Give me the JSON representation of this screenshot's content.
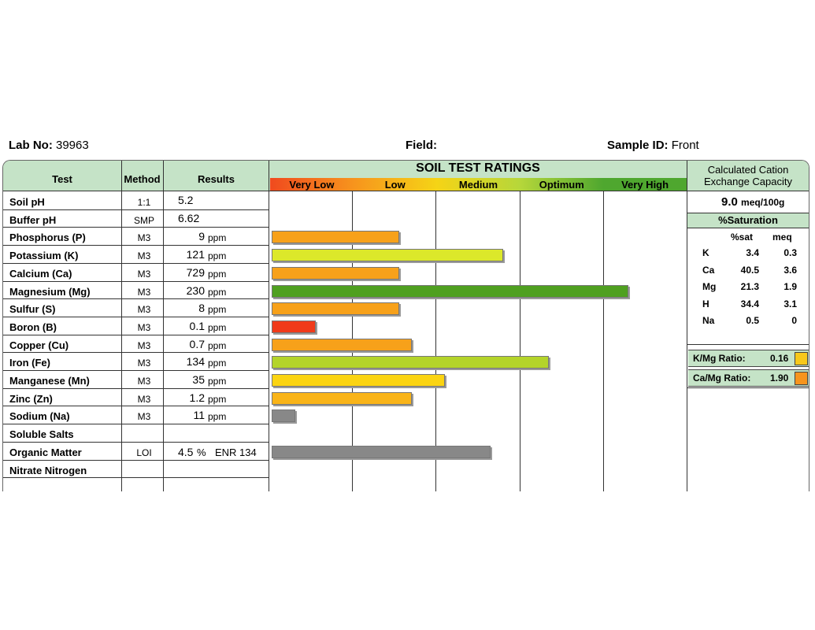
{
  "header": {
    "lab_no_label": "Lab No:",
    "lab_no_value": "39963",
    "field_label": "Field:",
    "field_value": "",
    "sample_id_label": "Sample ID:",
    "sample_id_value": "Front"
  },
  "table": {
    "col_test": "Test",
    "col_method": "Method",
    "col_results": "Results",
    "ratings_title": "SOIL TEST RATINGS",
    "scale": [
      {
        "label": "Very Low",
        "color": "#f04a1e"
      },
      {
        "label": "Low",
        "color": "#f7941d"
      },
      {
        "label": "Medium",
        "color": "#f5d416"
      },
      {
        "label": "Optimum",
        "color": "#b6d73a"
      },
      {
        "label": "Very High",
        "color": "#4fa72f"
      }
    ],
    "rows": [
      {
        "test": "Soil pH",
        "method": "1:1",
        "value": "5.2",
        "unit": "",
        "extra": "",
        "rating_pct": null,
        "color": ""
      },
      {
        "test": "Buffer pH",
        "method": "SMP",
        "value": "6.62",
        "unit": "",
        "extra": "",
        "rating_pct": null,
        "color": ""
      },
      {
        "test": "Phosphorus (P)",
        "method": "M3",
        "value": "9",
        "unit": "ppm",
        "extra": "",
        "rating_pct": 31,
        "color": "#f7a11a"
      },
      {
        "test": "Potassium (K)",
        "method": "M3",
        "value": "121",
        "unit": "ppm",
        "extra": "",
        "rating_pct": 56,
        "color": "#dce82a"
      },
      {
        "test": "Calcium (Ca)",
        "method": "M3",
        "value": "729",
        "unit": "ppm",
        "extra": "",
        "rating_pct": 31,
        "color": "#f7a11a"
      },
      {
        "test": "Magnesium (Mg)",
        "method": "M3",
        "value": "230",
        "unit": "ppm",
        "extra": "",
        "rating_pct": 86,
        "color": "#4fa020"
      },
      {
        "test": "Sulfur (S)",
        "method": "M3",
        "value": "8",
        "unit": "ppm",
        "extra": "",
        "rating_pct": 31,
        "color": "#f7a11a"
      },
      {
        "test": "Boron (B)",
        "method": "M3",
        "value": "0.1",
        "unit": "ppm",
        "extra": "",
        "rating_pct": 11,
        "color": "#f03a1a"
      },
      {
        "test": "Copper (Cu)",
        "method": "M3",
        "value": "0.7",
        "unit": "ppm",
        "extra": "",
        "rating_pct": 34,
        "color": "#f7a11a"
      },
      {
        "test": "Iron (Fe)",
        "method": "M3",
        "value": "134",
        "unit": "ppm",
        "extra": "",
        "rating_pct": 67,
        "color": "#b4d42a"
      },
      {
        "test": "Manganese (Mn)",
        "method": "M3",
        "value": "35",
        "unit": "ppm",
        "extra": "",
        "rating_pct": 42,
        "color": "#fbd412"
      },
      {
        "test": "Zinc (Zn)",
        "method": "M3",
        "value": "1.2",
        "unit": "ppm",
        "extra": "",
        "rating_pct": 34,
        "color": "#f9b418"
      },
      {
        "test": "Sodium (Na)",
        "method": "M3",
        "value": "11",
        "unit": "ppm",
        "extra": "",
        "rating_pct": 6,
        "color": "#888888"
      },
      {
        "test": "Soluble Salts",
        "method": "",
        "value": "",
        "unit": "",
        "extra": "",
        "rating_pct": null,
        "color": ""
      },
      {
        "test": "Organic Matter",
        "method": "LOI",
        "value": "4.5",
        "unit": "%",
        "extra": "ENR 134",
        "rating_pct": 53,
        "color": "#888888"
      },
      {
        "test": "Nitrate Nitrogen",
        "method": "",
        "value": "",
        "unit": "",
        "extra": "",
        "rating_pct": null,
        "color": ""
      }
    ]
  },
  "cec": {
    "title_line1": "Calculated Cation",
    "title_line2": "Exchange Capacity",
    "value": "9.0",
    "unit": "meq/100g",
    "sat_title": "%Saturation",
    "col_sat": "%sat",
    "col_meq": "meq",
    "rows": [
      {
        "ion": "K",
        "sat": "3.4",
        "meq": "0.3"
      },
      {
        "ion": "Ca",
        "sat": "40.5",
        "meq": "3.6"
      },
      {
        "ion": "Mg",
        "sat": "21.3",
        "meq": "1.9"
      },
      {
        "ion": "H",
        "sat": "34.4",
        "meq": "3.1"
      },
      {
        "ion": "Na",
        "sat": "0.5",
        "meq": "0"
      }
    ],
    "km_label": "K/Mg Ratio:",
    "km_value": "0.16",
    "km_color": "#f7c81a",
    "camg_label": "Ca/Mg Ratio:",
    "camg_value": "1.90",
    "camg_color": "#f7941d"
  }
}
